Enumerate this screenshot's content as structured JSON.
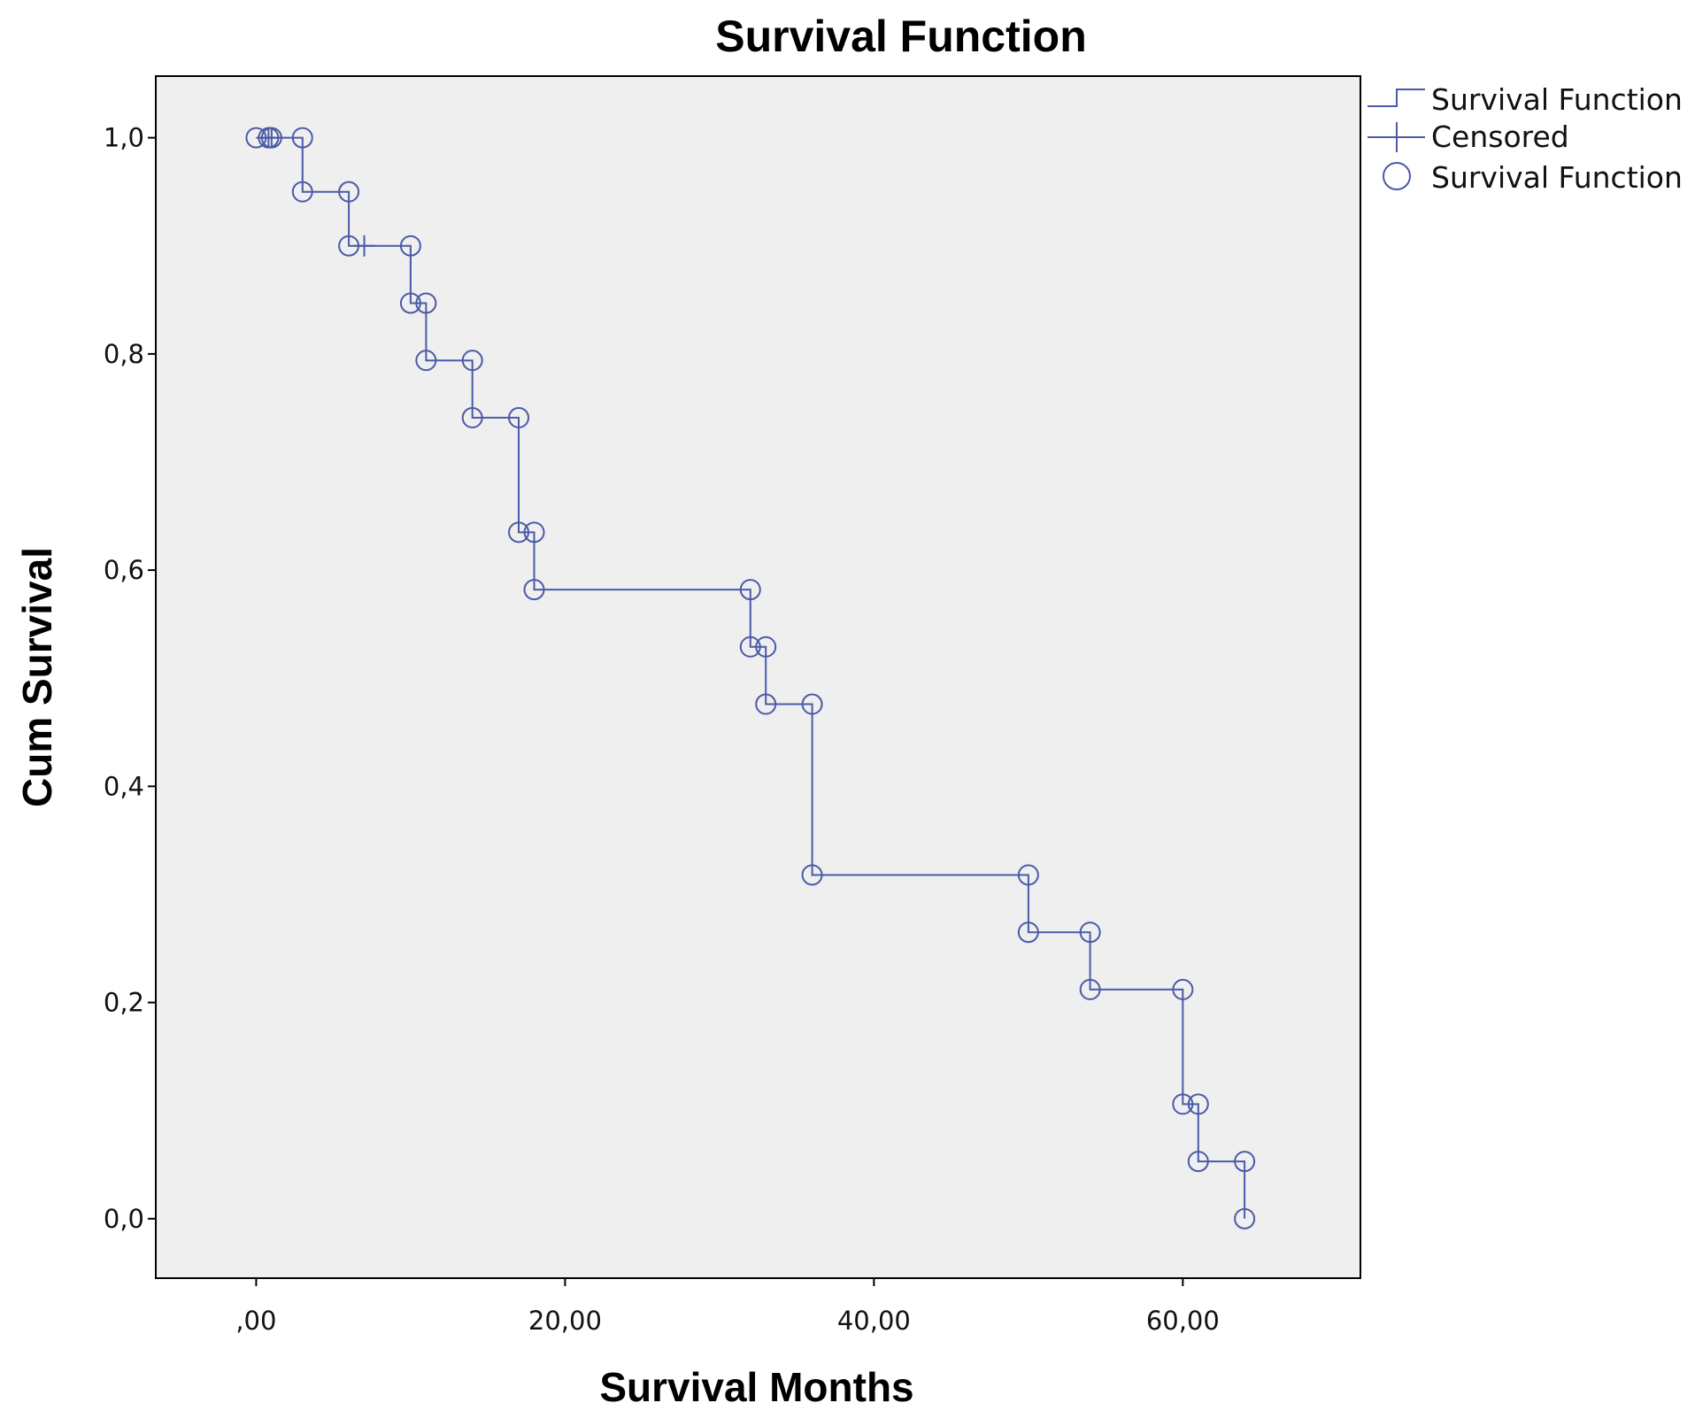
{
  "colors": {
    "series": "#4a5aa8",
    "plot_background": "#efefef",
    "frame": "#000000"
  },
  "chart_data": {
    "type": "line",
    "step": true,
    "title": "Survival Function",
    "xlabel": "Survival Months",
    "ylabel": "Cum Survival",
    "xlim": [
      -6.5,
      71.5
    ],
    "ylim": [
      -0.055,
      1.057
    ],
    "xticks": [
      0,
      20,
      40,
      60
    ],
    "xtick_labels": [
      ",00",
      "20,00",
      "40,00",
      "60,00"
    ],
    "yticks": [
      0,
      0.2,
      0.4,
      0.6,
      0.8,
      1.0
    ],
    "ytick_labels": [
      "0,0",
      "0,2",
      "0,4",
      "0,6",
      "0,8",
      "1,0"
    ],
    "grid": false,
    "legend_position": "top-right",
    "legend": [
      {
        "label": "Survival Function",
        "marker": "step-line"
      },
      {
        "label": "Censored",
        "marker": "plus"
      },
      {
        "label": "Survival Function",
        "marker": "circle"
      }
    ],
    "series": [
      {
        "name": "Survival Function",
        "step_points": [
          {
            "x": 0,
            "y": 1.0
          },
          {
            "x": 3,
            "y": 1.0
          },
          {
            "x": 3,
            "y": 0.95
          },
          {
            "x": 6,
            "y": 0.95
          },
          {
            "x": 6,
            "y": 0.9
          },
          {
            "x": 10,
            "y": 0.9
          },
          {
            "x": 10,
            "y": 0.847
          },
          {
            "x": 11,
            "y": 0.847
          },
          {
            "x": 11,
            "y": 0.794
          },
          {
            "x": 14,
            "y": 0.794
          },
          {
            "x": 14,
            "y": 0.741
          },
          {
            "x": 17,
            "y": 0.741
          },
          {
            "x": 17,
            "y": 0.635
          },
          {
            "x": 18,
            "y": 0.635
          },
          {
            "x": 18,
            "y": 0.582
          },
          {
            "x": 32,
            "y": 0.582
          },
          {
            "x": 32,
            "y": 0.529
          },
          {
            "x": 33,
            "y": 0.529
          },
          {
            "x": 33,
            "y": 0.476
          },
          {
            "x": 36,
            "y": 0.476
          },
          {
            "x": 36,
            "y": 0.318
          },
          {
            "x": 50,
            "y": 0.318
          },
          {
            "x": 50,
            "y": 0.265
          },
          {
            "x": 54,
            "y": 0.265
          },
          {
            "x": 54,
            "y": 0.212
          },
          {
            "x": 60,
            "y": 0.212
          },
          {
            "x": 60,
            "y": 0.106
          },
          {
            "x": 61,
            "y": 0.106
          },
          {
            "x": 61,
            "y": 0.053
          },
          {
            "x": 64,
            "y": 0.053
          },
          {
            "x": 64,
            "y": 0.0
          }
        ]
      },
      {
        "name": "Censored",
        "points": [
          {
            "x": 0.8,
            "y": 1.0
          },
          {
            "x": 1.0,
            "y": 1.0
          },
          {
            "x": 7,
            "y": 0.9
          }
        ]
      },
      {
        "name": "Survival Function",
        "points": [
          {
            "x": 0,
            "y": 1.0
          },
          {
            "x": 0.8,
            "y": 1.0
          },
          {
            "x": 1.0,
            "y": 1.0
          },
          {
            "x": 3,
            "y": 1.0
          },
          {
            "x": 3,
            "y": 0.95
          },
          {
            "x": 6,
            "y": 0.95
          },
          {
            "x": 6,
            "y": 0.9
          },
          {
            "x": 10,
            "y": 0.9
          },
          {
            "x": 10,
            "y": 0.847
          },
          {
            "x": 11,
            "y": 0.847
          },
          {
            "x": 11,
            "y": 0.794
          },
          {
            "x": 14,
            "y": 0.794
          },
          {
            "x": 14,
            "y": 0.741
          },
          {
            "x": 17,
            "y": 0.741
          },
          {
            "x": 17,
            "y": 0.635
          },
          {
            "x": 18,
            "y": 0.635
          },
          {
            "x": 18,
            "y": 0.582
          },
          {
            "x": 32,
            "y": 0.582
          },
          {
            "x": 32,
            "y": 0.529
          },
          {
            "x": 33,
            "y": 0.529
          },
          {
            "x": 33,
            "y": 0.476
          },
          {
            "x": 36,
            "y": 0.476
          },
          {
            "x": 36,
            "y": 0.318
          },
          {
            "x": 50,
            "y": 0.318
          },
          {
            "x": 50,
            "y": 0.265
          },
          {
            "x": 54,
            "y": 0.265
          },
          {
            "x": 54,
            "y": 0.212
          },
          {
            "x": 60,
            "y": 0.212
          },
          {
            "x": 60,
            "y": 0.106
          },
          {
            "x": 61,
            "y": 0.106
          },
          {
            "x": 61,
            "y": 0.053
          },
          {
            "x": 64,
            "y": 0.053
          },
          {
            "x": 64,
            "y": 0.0
          }
        ]
      }
    ]
  }
}
